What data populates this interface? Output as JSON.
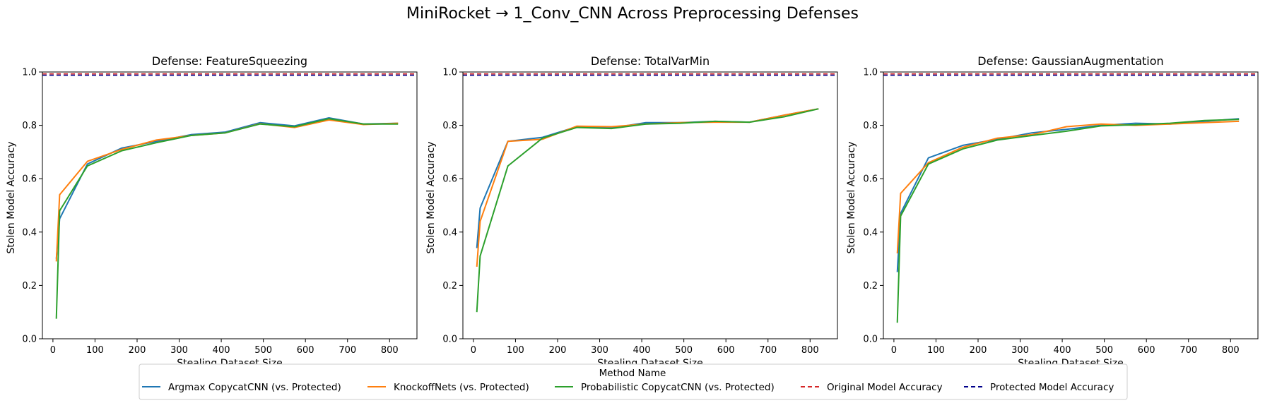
{
  "figure": {
    "title": "MiniRocket → 1_Conv_CNN Across Preprocessing Defenses"
  },
  "legend": {
    "title": "Method Name",
    "position": "bottom-center"
  },
  "colors": {
    "Argmax CopycatCNN (vs. Protected)": "#1f77b4",
    "KnockoffNets (vs. Protected)": "#ff7f0e",
    "Probabilistic CopycatCNN (vs. Protected)": "#2ca02c",
    "Original Model Accuracy": "#d62728",
    "Protected Model Accuracy": "#00008b"
  },
  "chart_data": [
    {
      "type": "line",
      "title": "Defense: FeatureSqueezing",
      "xlabel": "Stealing Dataset Size",
      "ylabel": "Stolen Model Accuracy",
      "xlim": [
        -25,
        865
      ],
      "ylim": [
        0,
        1.0
      ],
      "xticks": [
        0,
        100,
        200,
        300,
        400,
        500,
        600,
        700,
        800
      ],
      "yticks": [
        0.0,
        0.2,
        0.4,
        0.6,
        0.8,
        1.0
      ],
      "grid": false,
      "series": [
        {
          "name": "Argmax CopycatCNN (vs. Protected)",
          "style": "solid",
          "x": [
            8,
            16,
            82,
            164,
            246,
            328,
            410,
            492,
            574,
            656,
            738,
            820
          ],
          "y": [
            0.3,
            0.45,
            0.655,
            0.715,
            0.74,
            0.765,
            0.775,
            0.81,
            0.798,
            0.828,
            0.805,
            0.808
          ]
        },
        {
          "name": "KnockoffNets (vs. Protected)",
          "style": "solid",
          "x": [
            8,
            16,
            82,
            164,
            246,
            328,
            410,
            492,
            574,
            656,
            738,
            820
          ],
          "y": [
            0.29,
            0.54,
            0.665,
            0.71,
            0.745,
            0.762,
            0.772,
            0.806,
            0.792,
            0.82,
            0.803,
            0.808
          ]
        },
        {
          "name": "Probabilistic CopycatCNN (vs. Protected)",
          "style": "solid",
          "x": [
            8,
            16,
            82,
            164,
            246,
            328,
            410,
            492,
            574,
            656,
            738,
            820
          ],
          "y": [
            0.075,
            0.48,
            0.648,
            0.705,
            0.735,
            0.762,
            0.772,
            0.805,
            0.795,
            0.825,
            0.805,
            0.805
          ]
        },
        {
          "name": "Original Model Accuracy",
          "style": "dashed",
          "hline": 0.993
        },
        {
          "name": "Protected Model Accuracy",
          "style": "dashed",
          "hline": 0.988
        }
      ]
    },
    {
      "type": "line",
      "title": "Defense: TotalVarMin",
      "xlabel": "Stealing Dataset Size",
      "ylabel": "Stolen Model Accuracy",
      "xlim": [
        -25,
        865
      ],
      "ylim": [
        0,
        1.0
      ],
      "xticks": [
        0,
        100,
        200,
        300,
        400,
        500,
        600,
        700,
        800
      ],
      "yticks": [
        0.0,
        0.2,
        0.4,
        0.6,
        0.8,
        1.0
      ],
      "grid": false,
      "series": [
        {
          "name": "Argmax CopycatCNN (vs. Protected)",
          "style": "solid",
          "x": [
            8,
            16,
            82,
            164,
            246,
            328,
            410,
            492,
            574,
            656,
            738,
            820
          ],
          "y": [
            0.34,
            0.49,
            0.74,
            0.755,
            0.795,
            0.79,
            0.81,
            0.81,
            0.815,
            0.812,
            0.838,
            0.862
          ]
        },
        {
          "name": "KnockoffNets (vs. Protected)",
          "style": "solid",
          "x": [
            8,
            16,
            82,
            164,
            246,
            328,
            410,
            492,
            574,
            656,
            738,
            820
          ],
          "y": [
            0.27,
            0.44,
            0.74,
            0.748,
            0.797,
            0.795,
            0.805,
            0.81,
            0.812,
            0.812,
            0.838,
            0.862
          ]
        },
        {
          "name": "Probabilistic CopycatCNN (vs. Protected)",
          "style": "solid",
          "x": [
            8,
            16,
            82,
            164,
            246,
            328,
            410,
            492,
            574,
            656,
            738,
            820
          ],
          "y": [
            0.1,
            0.31,
            0.648,
            0.752,
            0.792,
            0.788,
            0.805,
            0.808,
            0.815,
            0.812,
            0.832,
            0.862
          ]
        },
        {
          "name": "Original Model Accuracy",
          "style": "dashed",
          "hline": 0.993
        },
        {
          "name": "Protected Model Accuracy",
          "style": "dashed",
          "hline": 0.988
        }
      ]
    },
    {
      "type": "line",
      "title": "Defense: GaussianAugmentation",
      "xlabel": "Stealing Dataset Size",
      "ylabel": "Stolen Model Accuracy",
      "xlim": [
        -25,
        865
      ],
      "ylim": [
        0,
        1.0
      ],
      "xticks": [
        0,
        100,
        200,
        300,
        400,
        500,
        600,
        700,
        800
      ],
      "yticks": [
        0.0,
        0.2,
        0.4,
        0.6,
        0.8,
        1.0
      ],
      "grid": false,
      "series": [
        {
          "name": "Argmax CopycatCNN (vs. Protected)",
          "style": "solid",
          "x": [
            8,
            16,
            82,
            164,
            246,
            328,
            410,
            492,
            574,
            656,
            738,
            820
          ],
          "y": [
            0.25,
            0.47,
            0.678,
            0.725,
            0.748,
            0.772,
            0.785,
            0.8,
            0.808,
            0.805,
            0.815,
            0.825
          ]
        },
        {
          "name": "KnockoffNets (vs. Protected)",
          "style": "solid",
          "x": [
            8,
            16,
            82,
            164,
            246,
            328,
            410,
            492,
            574,
            656,
            738,
            820
          ],
          "y": [
            0.32,
            0.545,
            0.66,
            0.718,
            0.752,
            0.765,
            0.795,
            0.805,
            0.8,
            0.805,
            0.81,
            0.815
          ]
        },
        {
          "name": "Probabilistic CopycatCNN (vs. Protected)",
          "style": "solid",
          "x": [
            8,
            16,
            82,
            164,
            246,
            328,
            410,
            492,
            574,
            656,
            738,
            820
          ],
          "y": [
            0.06,
            0.46,
            0.655,
            0.712,
            0.745,
            0.762,
            0.778,
            0.798,
            0.802,
            0.808,
            0.818,
            0.822
          ]
        },
        {
          "name": "Original Model Accuracy",
          "style": "dashed",
          "hline": 0.993
        },
        {
          "name": "Protected Model Accuracy",
          "style": "dashed",
          "hline": 0.988
        }
      ]
    }
  ]
}
